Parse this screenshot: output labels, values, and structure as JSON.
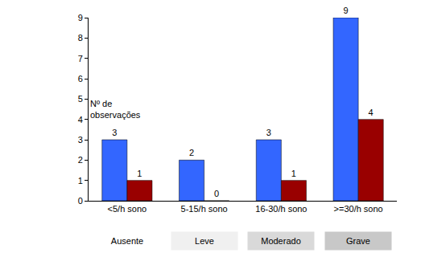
{
  "chart_data": {
    "type": "bar",
    "categories": [
      "<5/h sono",
      "5-15/h sono",
      "16-30/h sono",
      ">=30/h sono"
    ],
    "series": [
      {
        "color": "#3366ff",
        "values": [
          3,
          2,
          3,
          9
        ]
      },
      {
        "color": "#990000",
        "values": [
          1,
          0,
          1,
          4
        ]
      }
    ],
    "ylabel": "Nº de\nobservações",
    "annotations": [
      "Ausente",
      "Leve",
      "Moderado",
      "Grave"
    ],
    "ylim": [
      0,
      9
    ],
    "yticks": [
      0,
      1,
      2,
      3,
      4,
      5,
      6,
      7,
      8,
      9
    ],
    "grid": false,
    "data_labels": true
  }
}
